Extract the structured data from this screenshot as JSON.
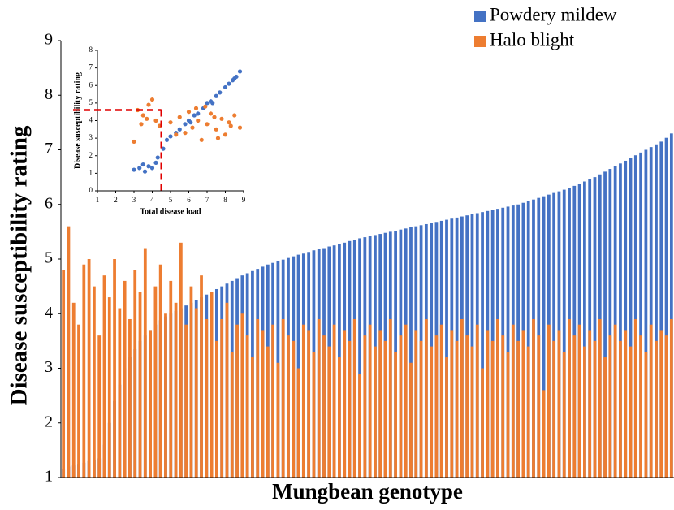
{
  "chart_data": [
    {
      "type": "bar",
      "ylabel": "Disease susceptibility rating",
      "xlabel": "Mungbean genotype",
      "legend": "upper right",
      "ylim": [
        1,
        9
      ],
      "yticks": [
        1,
        2,
        3,
        4,
        5,
        6,
        7,
        8,
        9
      ],
      "series": [
        {
          "name": "Powdery mildew",
          "color": "#4472c4",
          "values": [
            1.15,
            1.2,
            1.22,
            1.25,
            1.27,
            1.3,
            1.32,
            1.35,
            1.6,
            2.0,
            2.4,
            2.7,
            3.0,
            3.2,
            3.35,
            3.5,
            3.6,
            3.7,
            3.8,
            3.88,
            3.95,
            4.0,
            4.05,
            4.1,
            4.15,
            4.2,
            4.25,
            4.3,
            4.35,
            4.4,
            4.45,
            4.5,
            4.55,
            4.6,
            4.65,
            4.7,
            4.74,
            4.78,
            4.82,
            4.86,
            4.9,
            4.93,
            4.96,
            4.99,
            5.02,
            5.05,
            5.08,
            5.1,
            5.13,
            5.16,
            5.18,
            5.2,
            5.23,
            5.25,
            5.28,
            5.3,
            5.33,
            5.35,
            5.38,
            5.4,
            5.42,
            5.44,
            5.46,
            5.48,
            5.5,
            5.52,
            5.54,
            5.56,
            5.58,
            5.6,
            5.62,
            5.64,
            5.66,
            5.68,
            5.7,
            5.72,
            5.74,
            5.76,
            5.78,
            5.8,
            5.82,
            5.84,
            5.86,
            5.88,
            5.9,
            5.92,
            5.94,
            5.96,
            5.98,
            6.0,
            6.03,
            6.06,
            6.09,
            6.12,
            6.15,
            6.18,
            6.21,
            6.24,
            6.27,
            6.3,
            6.34,
            6.38,
            6.42,
            6.46,
            6.5,
            6.55,
            6.6,
            6.65,
            6.7,
            6.75,
            6.8,
            6.85,
            6.9,
            6.95,
            7.0,
            7.05,
            7.1,
            7.15,
            7.22,
            7.3
          ]
        },
        {
          "name": "Halo blight",
          "color": "#ed7d31",
          "values": [
            4.8,
            5.6,
            4.2,
            3.8,
            4.9,
            5.0,
            4.5,
            3.6,
            4.7,
            4.3,
            5.0,
            4.1,
            4.6,
            3.9,
            4.8,
            4.4,
            5.2,
            3.7,
            4.5,
            4.9,
            4.0,
            4.6,
            4.2,
            5.3,
            3.8,
            4.5,
            4.1,
            4.7,
            3.9,
            4.4,
            3.5,
            3.9,
            4.2,
            3.3,
            3.8,
            4.0,
            3.6,
            3.2,
            3.9,
            3.7,
            3.4,
            3.8,
            3.1,
            3.9,
            3.6,
            3.5,
            3.0,
            3.8,
            3.7,
            3.3,
            3.9,
            3.6,
            3.4,
            3.8,
            3.2,
            3.7,
            3.5,
            3.9,
            2.9,
            3.6,
            3.8,
            3.4,
            3.7,
            3.5,
            3.9,
            3.3,
            3.6,
            3.8,
            3.1,
            3.7,
            3.5,
            3.9,
            3.4,
            3.6,
            3.8,
            3.2,
            3.7,
            3.5,
            3.9,
            3.6,
            3.4,
            3.8,
            3.0,
            3.7,
            3.5,
            3.9,
            3.6,
            3.3,
            3.8,
            3.5,
            3.7,
            3.4,
            3.9,
            3.6,
            2.6,
            3.8,
            3.5,
            3.7,
            3.3,
            3.9,
            3.6,
            3.8,
            3.4,
            3.7,
            3.5,
            3.9,
            3.2,
            3.6,
            3.8,
            3.5,
            3.7,
            3.4,
            3.9,
            3.6,
            3.3,
            3.8,
            3.5,
            3.7,
            3.6,
            3.9
          ]
        }
      ]
    },
    {
      "type": "scatter",
      "xlabel": "Total disease load",
      "ylabel": "Disease susceptibility rating",
      "xlim": [
        1,
        9
      ],
      "xticks": [
        1,
        2,
        3,
        4,
        5,
        6,
        7,
        8,
        9
      ],
      "ylim": [
        0,
        8
      ],
      "yticks": [
        0,
        1,
        2,
        3,
        4,
        5,
        6,
        7,
        8
      ],
      "thresholds": {
        "x": 4.5,
        "y": 4.6,
        "color": "#e00000"
      },
      "series": [
        {
          "name": "Powdery mildew",
          "color": "#4472c4",
          "x": [
            3.0,
            3.3,
            3.6,
            3.8,
            4.0,
            4.2,
            3.5,
            4.3,
            4.6,
            4.8,
            5.0,
            5.3,
            5.5,
            5.8,
            6.0,
            6.3,
            6.5,
            6.8,
            7.0,
            7.2,
            7.5,
            7.7,
            8.0,
            8.2,
            8.4,
            8.6,
            8.8,
            6.1,
            7.3,
            8.5
          ],
          "values": [
            1.2,
            1.3,
            1.1,
            1.4,
            1.3,
            1.6,
            1.5,
            1.9,
            2.4,
            2.9,
            3.1,
            3.3,
            3.5,
            3.8,
            4.0,
            4.3,
            4.4,
            4.7,
            5.0,
            5.1,
            5.4,
            5.6,
            5.9,
            6.1,
            6.3,
            6.5,
            6.8,
            3.9,
            5.0,
            6.4
          ]
        },
        {
          "name": "Halo blight",
          "color": "#ed7d31",
          "x": [
            3.2,
            3.5,
            3.8,
            4.0,
            3.4,
            4.2,
            3.0,
            3.7,
            4.4,
            5.0,
            5.5,
            5.8,
            6.0,
            6.2,
            6.5,
            6.7,
            7.0,
            7.2,
            7.5,
            7.8,
            8.0,
            8.2,
            8.5,
            8.8,
            6.9,
            7.6,
            5.3,
            6.4,
            8.3,
            7.4
          ],
          "values": [
            4.6,
            4.3,
            4.9,
            5.2,
            3.8,
            4.0,
            2.8,
            4.1,
            3.7,
            3.9,
            4.2,
            3.3,
            4.5,
            3.6,
            4.0,
            2.9,
            3.8,
            4.4,
            3.5,
            4.1,
            3.2,
            3.9,
            4.3,
            3.6,
            4.8,
            3.0,
            3.2,
            4.7,
            3.7,
            4.2
          ]
        }
      ]
    }
  ]
}
